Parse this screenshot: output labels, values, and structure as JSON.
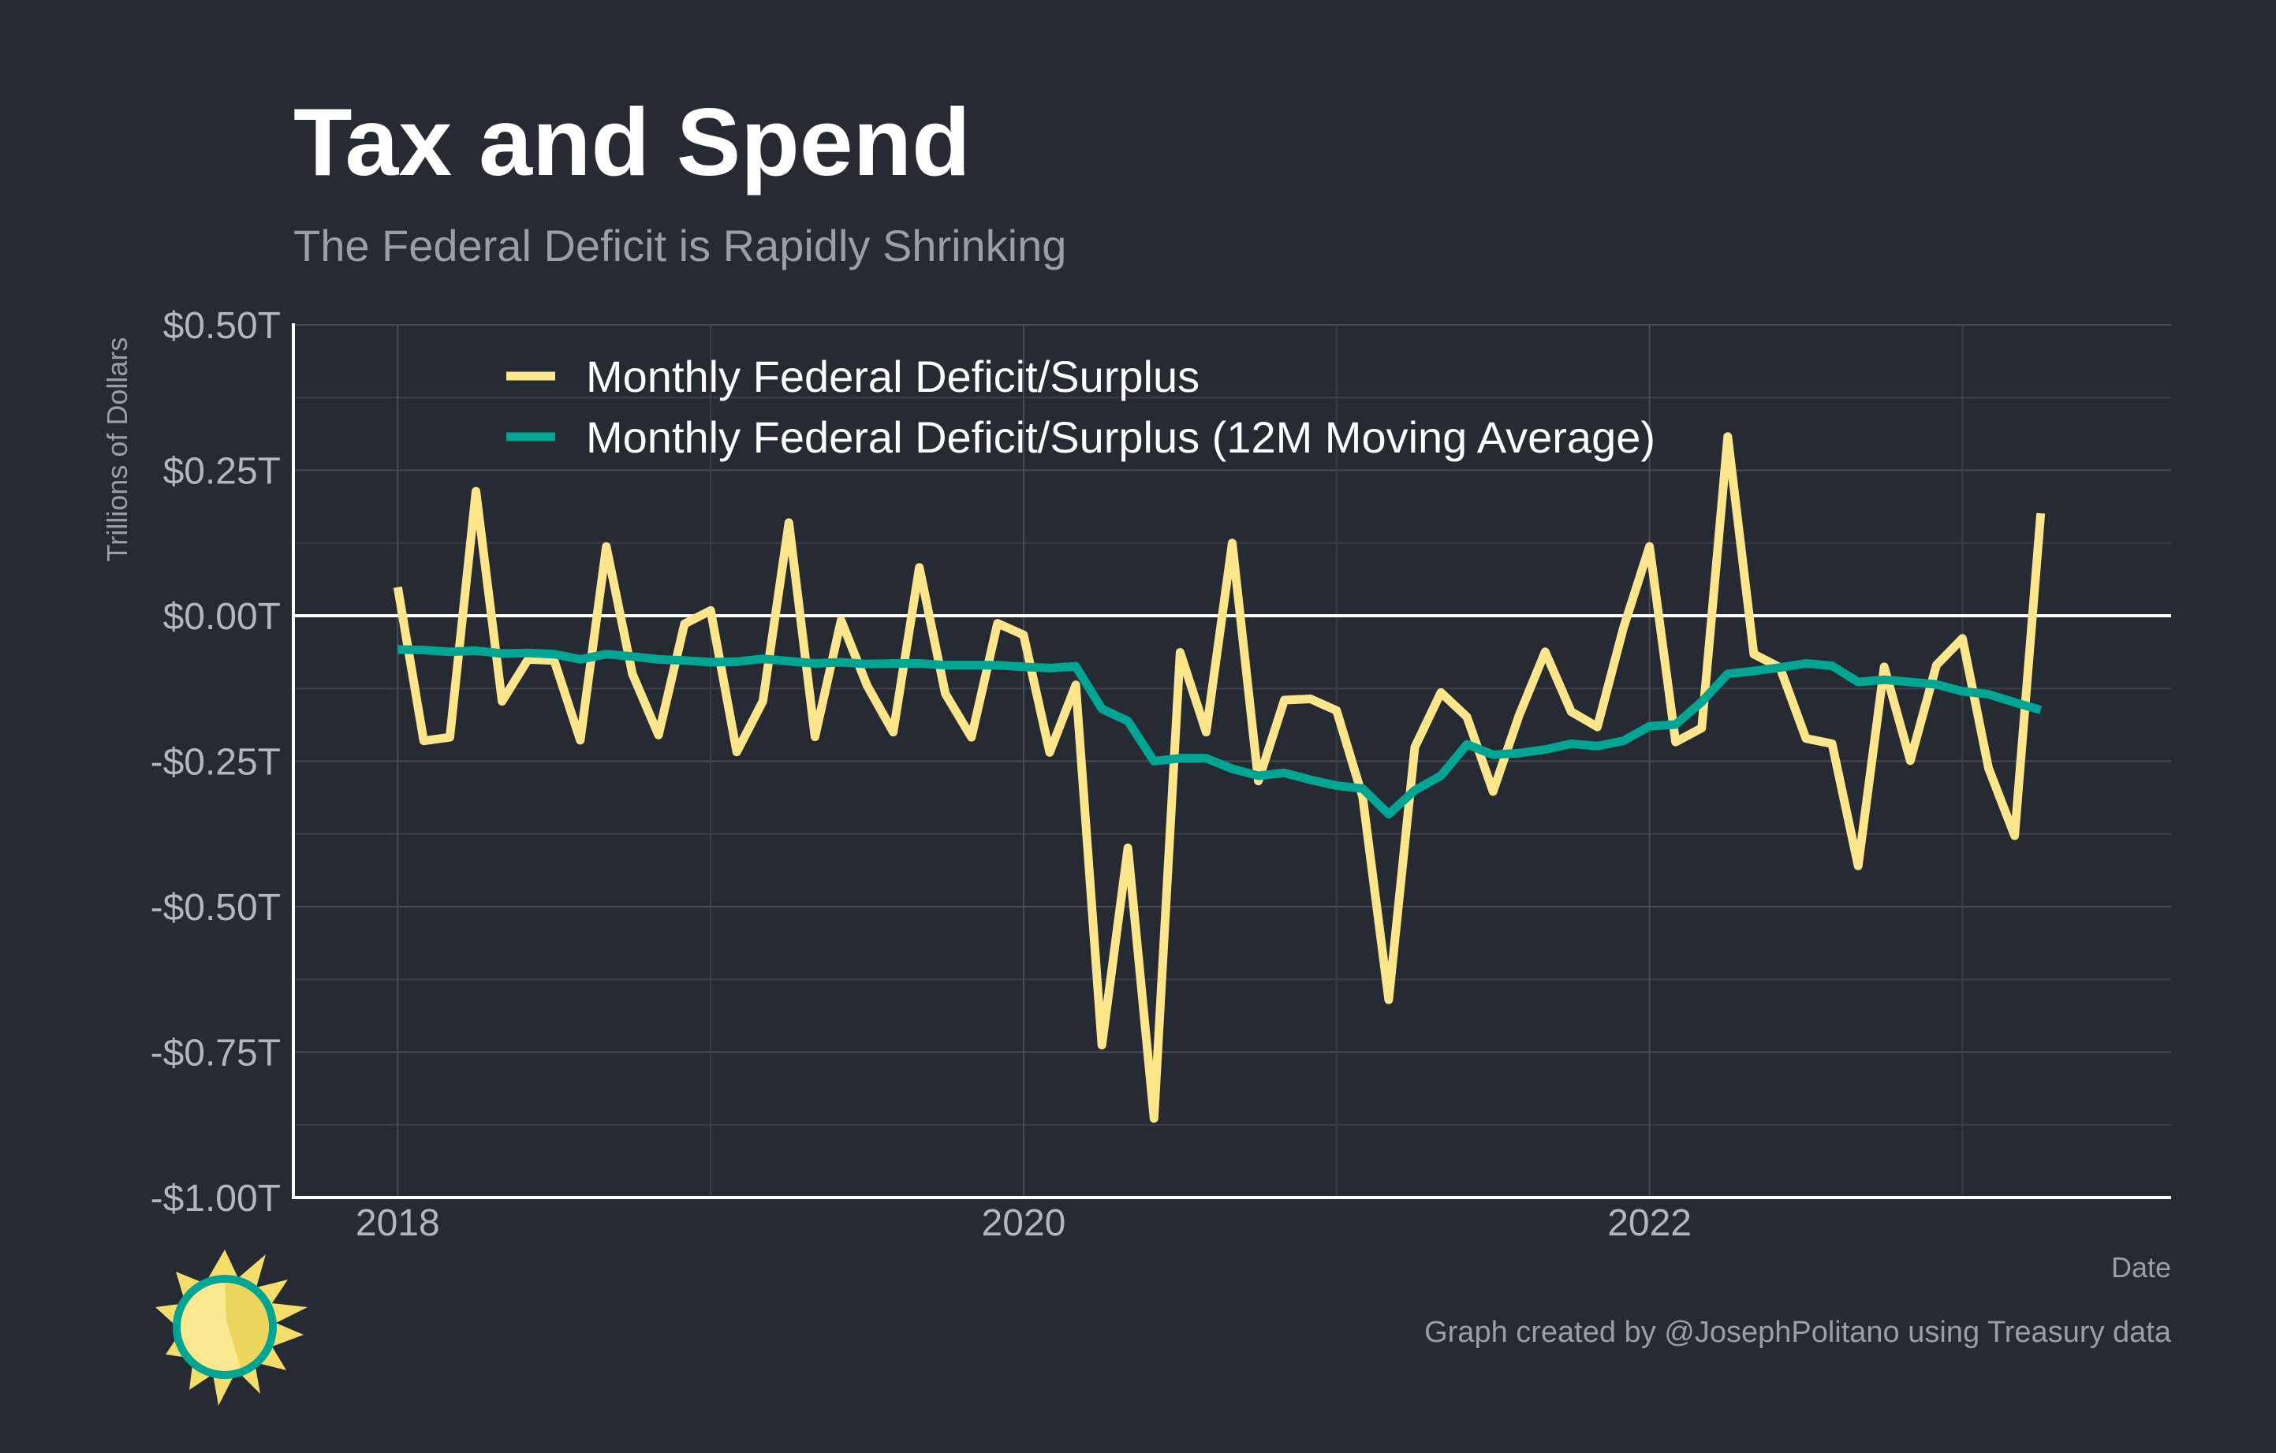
{
  "title": "Tax and Spend",
  "subtitle": "The Federal Deficit is Rapidly Shrinking",
  "caption": "Graph created by @JosephPolitano using Treasury data",
  "colors": {
    "background": "#252a33",
    "deficit_line": "#fde58b",
    "moving_average_line": "#00a693",
    "zero_line": "#ffffff",
    "logo_sun": "#f5dd6a",
    "logo_ring": "#00a693"
  },
  "logo_icon": "sun-icon",
  "chart_data": {
    "type": "line",
    "xlabel": "Date",
    "ylabel": "Trillions of Dollars",
    "ylim": [
      -1.0,
      0.5
    ],
    "xlim": [
      "2017-09",
      "2023-09"
    ],
    "y_ticks": [
      0.5,
      0.25,
      0.0,
      -0.25,
      -0.5,
      -0.75,
      -1.0
    ],
    "y_tick_labels": [
      "$0.50T",
      "$0.25T",
      "$0.00T",
      "-$0.25T",
      "-$0.50T",
      "-$0.75T",
      "-$1.00T"
    ],
    "x_ticks": [
      "2018-01",
      "2020-01",
      "2022-01"
    ],
    "x_tick_labels": [
      "2018",
      "2020",
      "2022"
    ],
    "grid": true,
    "legend_position": "top-left",
    "x": [
      "2018-01",
      "2018-02",
      "2018-03",
      "2018-04",
      "2018-05",
      "2018-06",
      "2018-07",
      "2018-08",
      "2018-09",
      "2018-10",
      "2018-11",
      "2018-12",
      "2019-01",
      "2019-02",
      "2019-03",
      "2019-04",
      "2019-05",
      "2019-06",
      "2019-07",
      "2019-08",
      "2019-09",
      "2019-10",
      "2019-11",
      "2019-12",
      "2020-01",
      "2020-02",
      "2020-03",
      "2020-04",
      "2020-05",
      "2020-06",
      "2020-07",
      "2020-08",
      "2020-09",
      "2020-10",
      "2020-11",
      "2020-12",
      "2021-01",
      "2021-02",
      "2021-03",
      "2021-04",
      "2021-05",
      "2021-06",
      "2021-07",
      "2021-08",
      "2021-09",
      "2021-10",
      "2021-11",
      "2021-12",
      "2022-01",
      "2022-02",
      "2022-03",
      "2022-04",
      "2022-05",
      "2022-06",
      "2022-07",
      "2022-08",
      "2022-09",
      "2022-10",
      "2022-11",
      "2022-12",
      "2023-01",
      "2023-02",
      "2023-03",
      "2023-04"
    ],
    "series": [
      {
        "name": "Monthly Federal Deficit/Surplus",
        "values": [
          0.049,
          -0.215,
          -0.209,
          0.214,
          -0.147,
          -0.075,
          -0.077,
          -0.214,
          0.119,
          -0.1,
          -0.205,
          -0.014,
          0.009,
          -0.234,
          -0.147,
          0.16,
          -0.208,
          -0.008,
          -0.12,
          -0.2,
          0.083,
          -0.134,
          -0.209,
          -0.013,
          -0.033,
          -0.235,
          -0.119,
          -0.738,
          -0.399,
          -0.864,
          -0.063,
          -0.2,
          0.125,
          -0.284,
          -0.145,
          -0.143,
          -0.163,
          -0.311,
          -0.66,
          -0.226,
          -0.132,
          -0.174,
          -0.302,
          -0.171,
          -0.062,
          -0.165,
          -0.191,
          -0.021,
          0.119,
          -0.217,
          -0.193,
          0.308,
          -0.066,
          -0.089,
          -0.211,
          -0.22,
          -0.43,
          -0.088,
          -0.249,
          -0.085,
          -0.039,
          -0.262,
          -0.378,
          0.176
        ]
      },
      {
        "name": "Monthly Federal Deficit/Surplus (12M Moving Average)",
        "values": [
          -0.058,
          -0.059,
          -0.062,
          -0.06,
          -0.065,
          -0.064,
          -0.066,
          -0.075,
          -0.066,
          -0.07,
          -0.075,
          -0.077,
          -0.08,
          -0.079,
          -0.074,
          -0.078,
          -0.082,
          -0.08,
          -0.083,
          -0.082,
          -0.082,
          -0.085,
          -0.085,
          -0.085,
          -0.088,
          -0.09,
          -0.087,
          -0.16,
          -0.181,
          -0.25,
          -0.245,
          -0.245,
          -0.263,
          -0.275,
          -0.27,
          -0.282,
          -0.292,
          -0.297,
          -0.341,
          -0.3,
          -0.275,
          -0.221,
          -0.239,
          -0.236,
          -0.23,
          -0.22,
          -0.224,
          -0.215,
          -0.19,
          -0.187,
          -0.148,
          -0.1,
          -0.095,
          -0.089,
          -0.082,
          -0.086,
          -0.114,
          -0.11,
          -0.114,
          -0.118,
          -0.13,
          -0.135,
          -0.149,
          -0.162
        ]
      }
    ]
  }
}
